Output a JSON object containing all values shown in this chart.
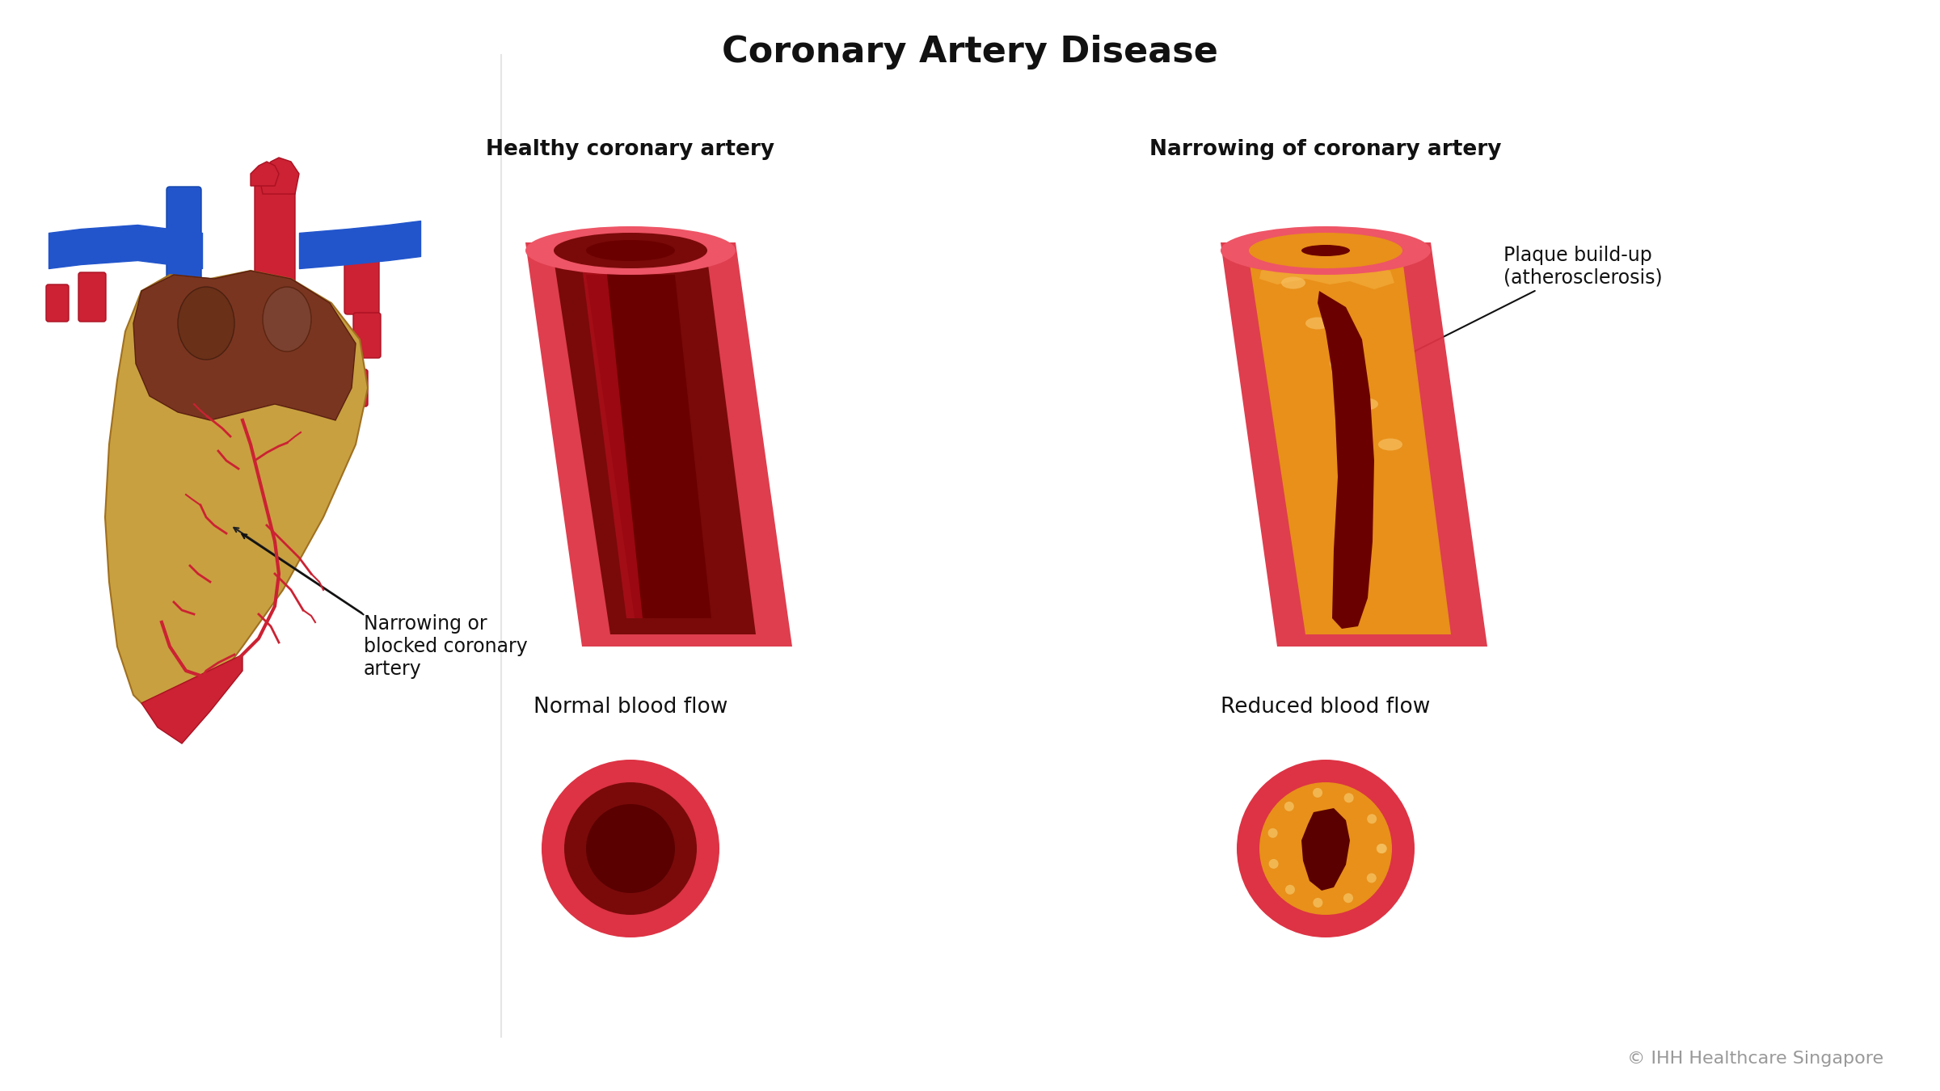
{
  "title": "Coronary Artery Disease",
  "title_fontsize": 32,
  "title_fontweight": "bold",
  "copyright": "© IHH Healthcare Singapore",
  "copyright_color": "#999999",
  "bg_color": "#ffffff",
  "label_healthy": "Healthy coronary artery",
  "label_narrowing": "Narrowing of coronary artery",
  "label_normal_flow": "Normal blood flow",
  "label_reduced_flow": "Reduced blood flow",
  "label_plaque": "Plaque build-up\n(atherosclerosis)",
  "label_narrowing_heart": "Narrowing or\nblocked coronary\nartery",
  "artery_outer_color": "#cc2222",
  "artery_wall_color": "#aa1111",
  "artery_inner_color": "#880000",
  "plaque_color": "#f0a020",
  "arrow_color": "#dddddd",
  "heart_color": "#c8a060",
  "heart_muscle_color": "#8b4513"
}
